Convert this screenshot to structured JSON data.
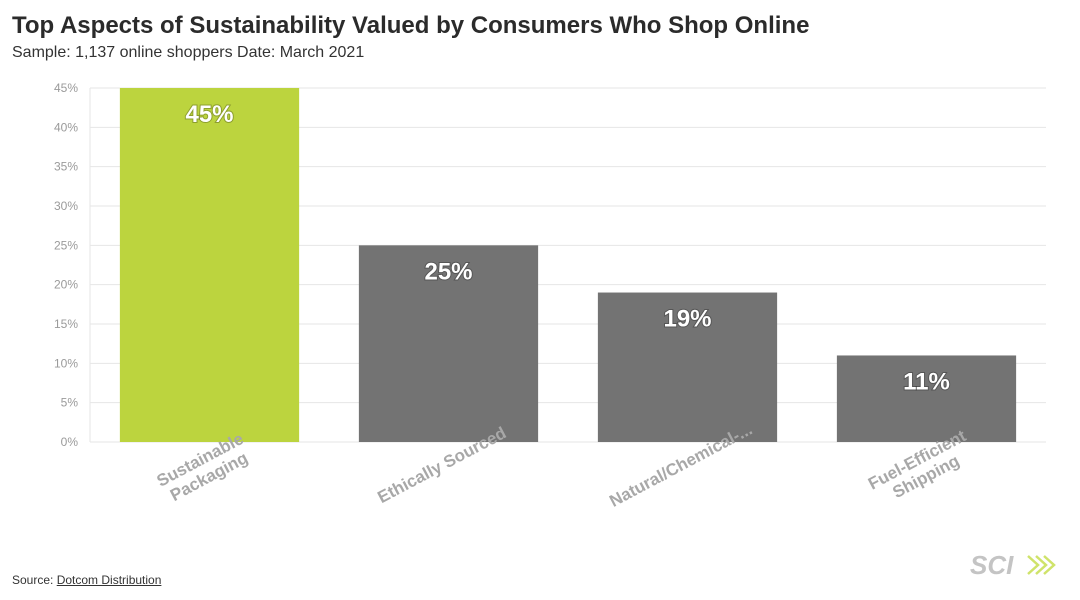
{
  "header": {
    "title": "Top Aspects of Sustainability Valued by Consumers Who Shop Online",
    "subtitle": "Sample: 1,137 online shoppers Date: March 2021"
  },
  "footer": {
    "source_prefix": "Source: ",
    "source_link": "Dotcom Distribution",
    "logo_text": "SCI"
  },
  "colors": {
    "highlight": "#bcd43e",
    "bar": "#737373",
    "grid": "#e6e6e6",
    "tick_text": "#9a9a9a",
    "category_text": "#a8a8a8",
    "value_label": "#ffffff"
  },
  "chart_data": {
    "type": "bar",
    "title": "Top Aspects of Sustainability Valued by Consumers Who Shop Online",
    "subtitle": "Sample: 1,137 online shoppers Date: March 2021",
    "categories": [
      [
        "Sustainable",
        "Packaging"
      ],
      [
        "Ethically Sourced"
      ],
      [
        "Natural/Chemical-..."
      ],
      [
        "Fuel-Efficient",
        "Shipping"
      ]
    ],
    "values": [
      45,
      25,
      19,
      11
    ],
    "value_labels": [
      "45%",
      "25%",
      "19%",
      "11%"
    ],
    "highlight_index": 0,
    "ylim": [
      0,
      45
    ],
    "yticks": [
      0,
      5,
      10,
      15,
      20,
      25,
      30,
      35,
      40,
      45
    ],
    "ytick_labels": [
      "0%",
      "5%",
      "10%",
      "15%",
      "20%",
      "25%",
      "30%",
      "35%",
      "40%",
      "45%"
    ],
    "grid": true,
    "legend": "none"
  }
}
